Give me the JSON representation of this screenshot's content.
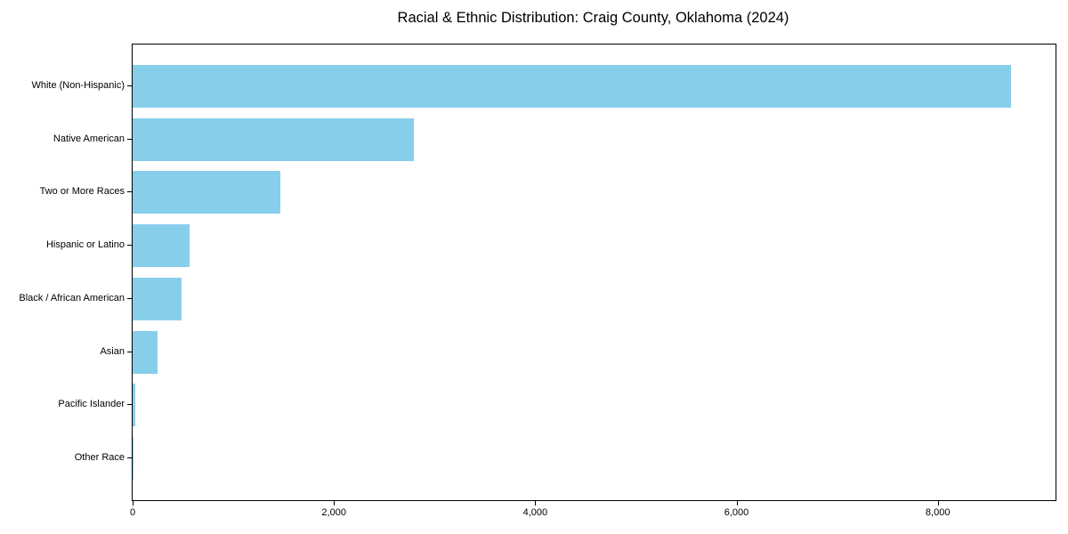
{
  "chart_data": {
    "type": "bar",
    "orientation": "horizontal",
    "title": "Racial & Ethnic Distribution: Craig County, Oklahoma (2024)",
    "xlabel": "",
    "ylabel": "",
    "categories": [
      "White (Non-Hispanic)",
      "Native American",
      "Two or More Races",
      "Hispanic or Latino",
      "Black / African American",
      "Asian",
      "Pacific Islander",
      "Other Race"
    ],
    "values": [
      8730,
      2790,
      1470,
      565,
      485,
      245,
      30,
      8
    ],
    "xlim": [
      0,
      9170
    ],
    "x_ticks": [
      0,
      2000,
      4000,
      6000,
      8000
    ],
    "x_tick_labels": [
      "0",
      "2,000",
      "4,000",
      "6,000",
      "8,000"
    ],
    "bar_color": "#87CEEB",
    "axis_color": "#000000",
    "background_color": "#FFFFFF",
    "grid": false,
    "legend": null
  }
}
